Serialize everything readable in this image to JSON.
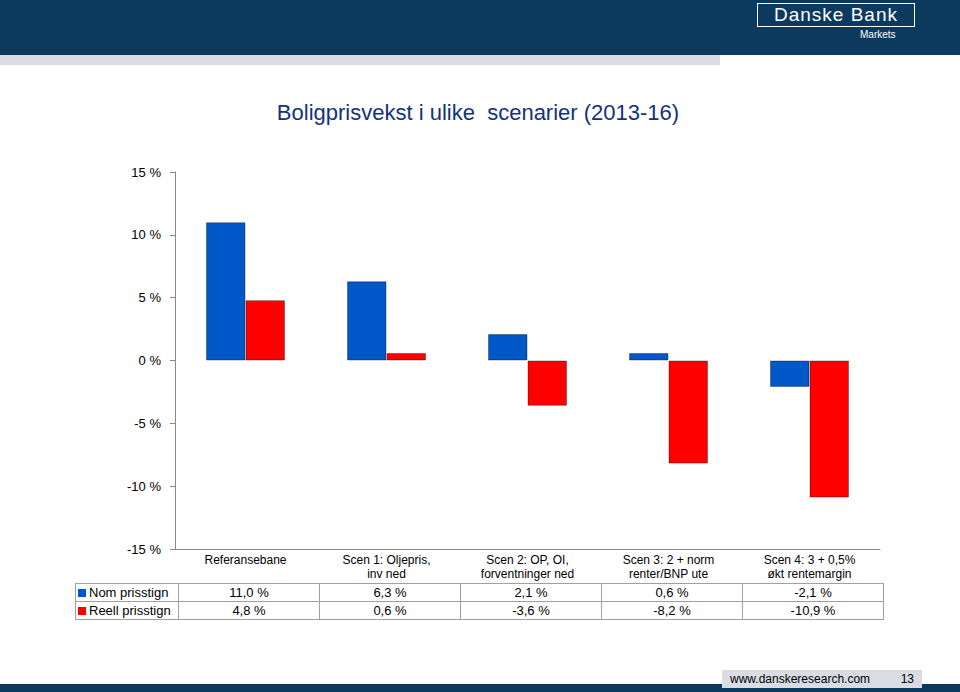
{
  "header": {
    "brand": "Danske Bank",
    "unit": "Markets"
  },
  "footer": {
    "url": "www.danskeresearch.com",
    "page": "13"
  },
  "chart_data": {
    "type": "bar",
    "title": "Boligprisvekst i ulike  scenarier (2013-16)",
    "categories": [
      "Referansebane",
      "Scen 1: Oljepris,\ninv ned",
      "Scen 2: OP, OI,\nforventninger ned",
      "Scen 3: 2 + norm\nrenter/BNP ute",
      "Scen 4: 3 + 0,5%\nøkt rentemargin"
    ],
    "series": [
      {
        "name": "Nom prisstign",
        "color": "#0058c8",
        "values": [
          11.0,
          6.3,
          2.1,
          0.6,
          -2.1
        ],
        "value_labels": [
          "11,0 %",
          "6,3 %",
          "2,1 %",
          "0,6 %",
          "-2,1 %"
        ]
      },
      {
        "name": "Reell prisstign",
        "color": "#ff0000",
        "values": [
          4.8,
          0.6,
          -3.6,
          -8.2,
          -10.9
        ],
        "value_labels": [
          "4,8 %",
          "0,6 %",
          "-3,6 %",
          "-8,2 %",
          "-10,9 %"
        ]
      }
    ],
    "ylim": [
      -15,
      15
    ],
    "yticks": [
      {
        "value": -15,
        "label": "-15 %"
      },
      {
        "value": -10,
        "label": "-10 %"
      },
      {
        "value": -5,
        "label": "-5 %"
      },
      {
        "value": 0,
        "label": "0 %"
      },
      {
        "value": 5,
        "label": "5 %"
      },
      {
        "value": 10,
        "label": "10 %"
      },
      {
        "value": 15,
        "label": "15 %"
      }
    ],
    "grid": false
  }
}
